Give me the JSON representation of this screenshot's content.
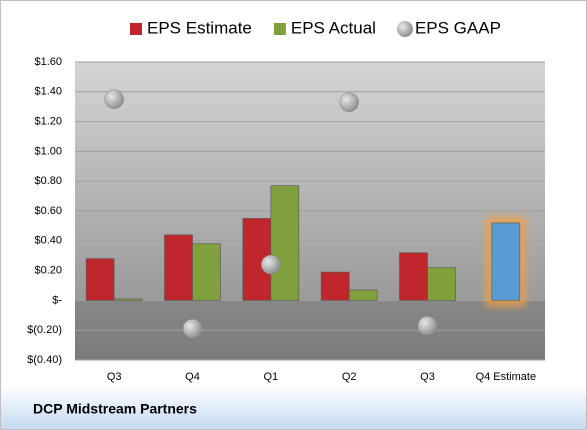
{
  "chart_data": {
    "type": "bar",
    "title": "DCP Midstream Partners",
    "categories": [
      "Q3",
      "Q4",
      "Q1",
      "Q2",
      "Q3",
      "Q4 Estimate"
    ],
    "series": [
      {
        "name": "EPS Estimate",
        "color": "#c0272d",
        "colors": [
          "#c0272d",
          "#c0272d",
          "#c0272d",
          "#c0272d",
          "#c0272d",
          "#5b9bd5"
        ],
        "values": [
          0.28,
          0.44,
          0.55,
          0.19,
          0.32,
          0.52
        ]
      },
      {
        "name": "EPS Actual",
        "color": "#7fa03c",
        "values": [
          0.01,
          0.38,
          0.77,
          0.07,
          0.22,
          null
        ]
      },
      {
        "name": "EPS GAAP",
        "color": "#a6a6a6",
        "marker": "circle",
        "values": [
          1.35,
          -0.19,
          0.24,
          1.33,
          -0.17,
          null
        ]
      }
    ],
    "ylim": [
      -0.4,
      1.6
    ],
    "yticks": [
      {
        "value": -0.4,
        "label": "$(0.40)"
      },
      {
        "value": -0.2,
        "label": "$(0.20)"
      },
      {
        "value": 0,
        "label": "$-"
      },
      {
        "value": 0.2,
        "label": "$0.20"
      },
      {
        "value": 0.4,
        "label": "$0.40"
      },
      {
        "value": 0.6,
        "label": "$0.60"
      },
      {
        "value": 0.8,
        "label": "$0.80"
      },
      {
        "value": 1.0,
        "label": "$1.00"
      },
      {
        "value": 1.2,
        "label": "$1.20"
      },
      {
        "value": 1.4,
        "label": "$1.40"
      },
      {
        "value": 1.6,
        "label": "$1.60"
      }
    ],
    "grid": true
  }
}
